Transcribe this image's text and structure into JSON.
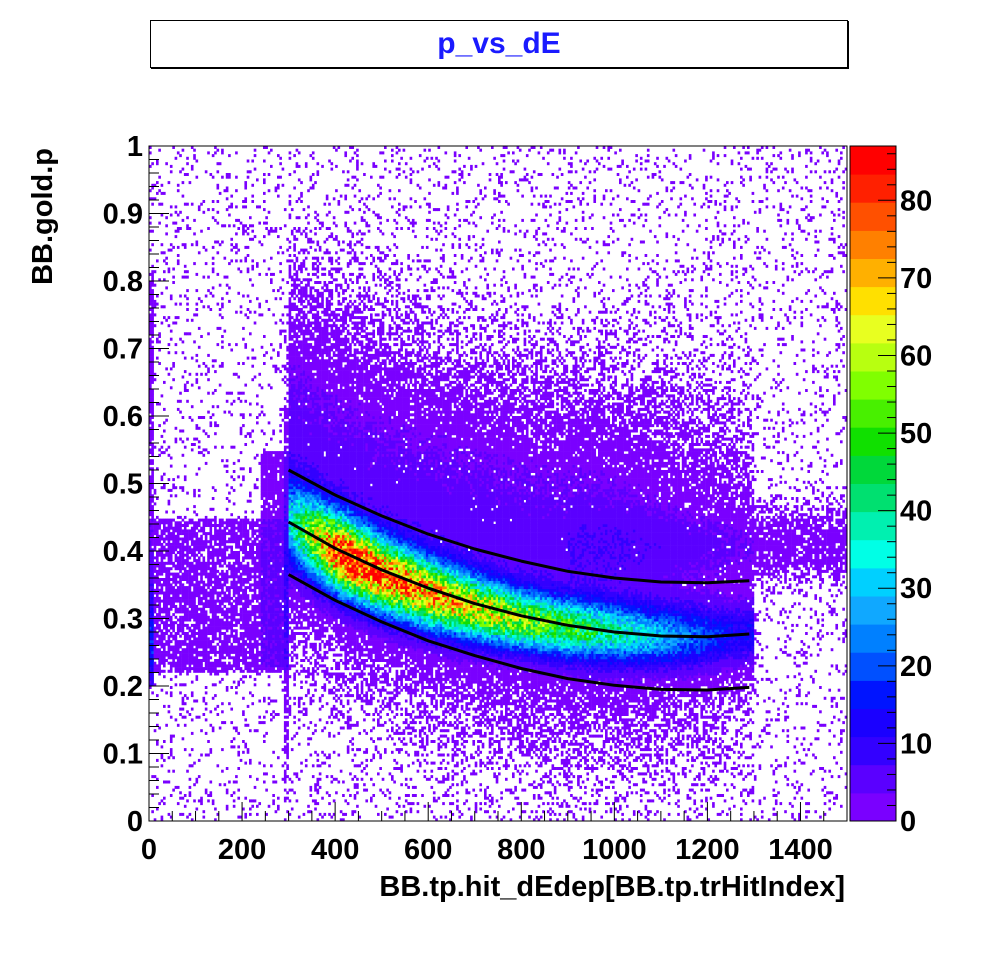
{
  "title": "p_vs_dE",
  "chart_data": {
    "type": "heatmap",
    "title": "p_vs_dE",
    "xlabel": "BB.tp.hit_dEdep[BB.tp.trHitIndex]",
    "ylabel": "BB.gold.p",
    "xlim": [
      0,
      1500
    ],
    "ylim": [
      0,
      1
    ],
    "x_ticks": [
      "0",
      "200",
      "400",
      "600",
      "800",
      "1000",
      "1200",
      "1400"
    ],
    "y_ticks": [
      "0",
      "0.1",
      "0.2",
      "0.3",
      "0.4",
      "0.5",
      "0.6",
      "0.7",
      "0.8",
      "0.9",
      "1"
    ],
    "z_range": [
      0,
      87
    ],
    "z_ticks": [
      "0",
      "10",
      "20",
      "30",
      "40",
      "50",
      "60",
      "70",
      "80"
    ],
    "band_ridge": [
      {
        "x": 300,
        "y": 0.445
      },
      {
        "x": 400,
        "y": 0.4
      },
      {
        "x": 500,
        "y": 0.365
      },
      {
        "x": 600,
        "y": 0.338
      },
      {
        "x": 700,
        "y": 0.316
      },
      {
        "x": 800,
        "y": 0.299
      },
      {
        "x": 900,
        "y": 0.287
      },
      {
        "x": 1000,
        "y": 0.279
      },
      {
        "x": 1100,
        "y": 0.274
      },
      {
        "x": 1200,
        "y": 0.273
      },
      {
        "x": 1290,
        "y": 0.277
      }
    ],
    "band_peak_counts": 85,
    "overlay_curves": [
      {
        "points": [
          {
            "x": 300,
            "y": 0.52
          },
          {
            "x": 400,
            "y": 0.483
          },
          {
            "x": 500,
            "y": 0.452
          },
          {
            "x": 600,
            "y": 0.425
          },
          {
            "x": 700,
            "y": 0.403
          },
          {
            "x": 800,
            "y": 0.385
          },
          {
            "x": 900,
            "y": 0.37
          },
          {
            "x": 1000,
            "y": 0.36
          },
          {
            "x": 1100,
            "y": 0.354
          },
          {
            "x": 1200,
            "y": 0.353
          },
          {
            "x": 1290,
            "y": 0.356
          }
        ]
      },
      {
        "points": [
          {
            "x": 300,
            "y": 0.443
          },
          {
            "x": 400,
            "y": 0.404
          },
          {
            "x": 500,
            "y": 0.372
          },
          {
            "x": 600,
            "y": 0.345
          },
          {
            "x": 700,
            "y": 0.322
          },
          {
            "x": 800,
            "y": 0.304
          },
          {
            "x": 900,
            "y": 0.29
          },
          {
            "x": 1000,
            "y": 0.28
          },
          {
            "x": 1100,
            "y": 0.274
          },
          {
            "x": 1200,
            "y": 0.273
          },
          {
            "x": 1290,
            "y": 0.277
          }
        ]
      },
      {
        "points": [
          {
            "x": 300,
            "y": 0.365
          },
          {
            "x": 400,
            "y": 0.327
          },
          {
            "x": 500,
            "y": 0.295
          },
          {
            "x": 600,
            "y": 0.267
          },
          {
            "x": 700,
            "y": 0.245
          },
          {
            "x": 800,
            "y": 0.226
          },
          {
            "x": 900,
            "y": 0.211
          },
          {
            "x": 1000,
            "y": 0.201
          },
          {
            "x": 1100,
            "y": 0.195
          },
          {
            "x": 1200,
            "y": 0.194
          },
          {
            "x": 1290,
            "y": 0.198
          }
        ]
      }
    ],
    "colors": {
      "title": "#1a1aff",
      "palette": [
        "#7a00ff",
        "#5a00ff",
        "#3300ff",
        "#1a00ff",
        "#0014ff",
        "#0050ff",
        "#0080ff",
        "#10a8ff",
        "#00d0ff",
        "#00ffe6",
        "#00f0b0",
        "#00e070",
        "#00d83a",
        "#10e000",
        "#48f000",
        "#80ff00",
        "#b8ff10",
        "#e8ff20",
        "#ffe000",
        "#ffb000",
        "#ff8000",
        "#ff5000",
        "#ff2000",
        "#ff0000"
      ]
    }
  }
}
